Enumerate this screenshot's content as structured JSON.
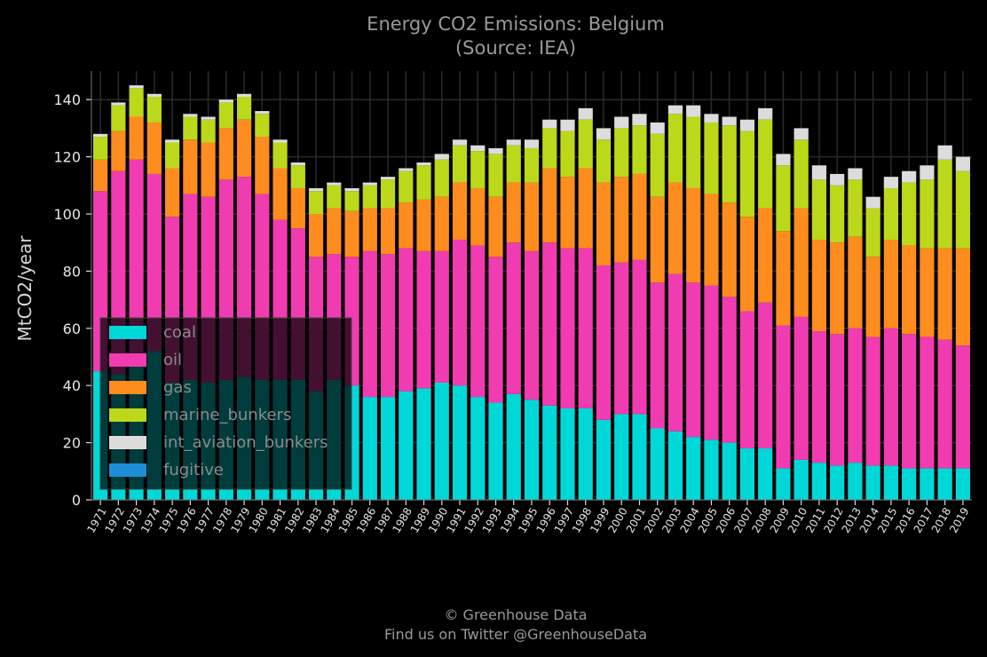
{
  "chart_data": {
    "type": "bar",
    "stacked": true,
    "title": "Energy CO2 Emissions: Belgium",
    "subtitle": "(Source: IEA)",
    "xlabel": "",
    "ylabel": "MtCO2/year",
    "ylim": [
      0,
      150
    ],
    "yticks": [
      0,
      20,
      40,
      60,
      80,
      100,
      120,
      140
    ],
    "grid": true,
    "legend_position": "lower-left",
    "categories": [
      "1971",
      "1972",
      "1973",
      "1974",
      "1975",
      "1976",
      "1977",
      "1978",
      "1979",
      "1980",
      "1981",
      "1982",
      "1983",
      "1984",
      "1985",
      "1986",
      "1987",
      "1988",
      "1989",
      "1990",
      "1991",
      "1992",
      "1993",
      "1994",
      "1995",
      "1996",
      "1997",
      "1998",
      "1999",
      "2000",
      "2001",
      "2002",
      "2003",
      "2004",
      "2005",
      "2006",
      "2007",
      "2008",
      "2009",
      "2010",
      "2011",
      "2012",
      "2013",
      "2014",
      "2015",
      "2016",
      "2017",
      "2018",
      "2019"
    ],
    "series": [
      {
        "name": "coal",
        "color": "#00d8d8",
        "values": [
          45,
          44,
          47,
          52,
          41,
          42,
          41,
          42,
          43,
          42,
          42,
          42,
          38,
          42,
          40,
          36,
          36,
          38,
          39,
          41,
          40,
          36,
          34,
          37,
          35,
          33,
          32,
          32,
          28,
          30,
          30,
          25,
          24,
          22,
          21,
          20,
          18,
          18,
          11,
          14,
          13,
          12,
          13,
          12,
          12,
          11,
          11,
          11,
          11
        ]
      },
      {
        "name": "oil",
        "color": "#f03cb0",
        "values": [
          63,
          71,
          72,
          62,
          58,
          65,
          65,
          70,
          70,
          65,
          56,
          53,
          47,
          44,
          45,
          51,
          50,
          50,
          48,
          46,
          51,
          53,
          51,
          53,
          52,
          57,
          56,
          56,
          54,
          53,
          54,
          51,
          55,
          54,
          54,
          51,
          48,
          51,
          50,
          50,
          46,
          46,
          47,
          45,
          48,
          47,
          46,
          45,
          43
        ]
      },
      {
        "name": "gas",
        "color": "#ff8c1e",
        "values": [
          11,
          14,
          15,
          18,
          17,
          19,
          19,
          18,
          20,
          20,
          18,
          14,
          15,
          16,
          16,
          15,
          16,
          16,
          18,
          19,
          20,
          20,
          21,
          21,
          24,
          26,
          25,
          28,
          29,
          30,
          30,
          30,
          32,
          33,
          32,
          33,
          33,
          33,
          33,
          38,
          32,
          32,
          32,
          28,
          31,
          31,
          31,
          32,
          34
        ]
      },
      {
        "name": "marine_bunkers",
        "color": "#bcd81a",
        "values": [
          8,
          9,
          10,
          9,
          9,
          8,
          8,
          9,
          8,
          8,
          9,
          8,
          8,
          8,
          7,
          8,
          10,
          11,
          12,
          13,
          13,
          13,
          15,
          13,
          12,
          14,
          16,
          17,
          15,
          17,
          17,
          22,
          24,
          25,
          25,
          27,
          30,
          31,
          23,
          24,
          21,
          20,
          20,
          17,
          18,
          22,
          24,
          31,
          27
        ]
      },
      {
        "name": "int_aviation_bunkers",
        "color": "#dcdcdc",
        "values": [
          1,
          1,
          1,
          1,
          1,
          1,
          1,
          1,
          1,
          1,
          1,
          1,
          1,
          1,
          1,
          1,
          1,
          1,
          1,
          2,
          2,
          2,
          2,
          2,
          3,
          3,
          4,
          4,
          4,
          4,
          4,
          4,
          3,
          4,
          3,
          3,
          4,
          4,
          4,
          4,
          5,
          4,
          4,
          4,
          4,
          4,
          5,
          5,
          5
        ]
      },
      {
        "name": "fugitive",
        "color": "#1e8ed8",
        "values": [
          0,
          0,
          0,
          0,
          0,
          0,
          0,
          0,
          0,
          0,
          0,
          0,
          0,
          0,
          0,
          0,
          0,
          0,
          0,
          0,
          0,
          0,
          0,
          0,
          0,
          0,
          0,
          0,
          0,
          0,
          0,
          0,
          0,
          0,
          0,
          0,
          0,
          0,
          0,
          0,
          0,
          0,
          0,
          0,
          0,
          0,
          0,
          0,
          0
        ]
      }
    ],
    "footer": [
      "© Greenhouse Data",
      "Find us on Twitter @GreenhouseData"
    ]
  }
}
